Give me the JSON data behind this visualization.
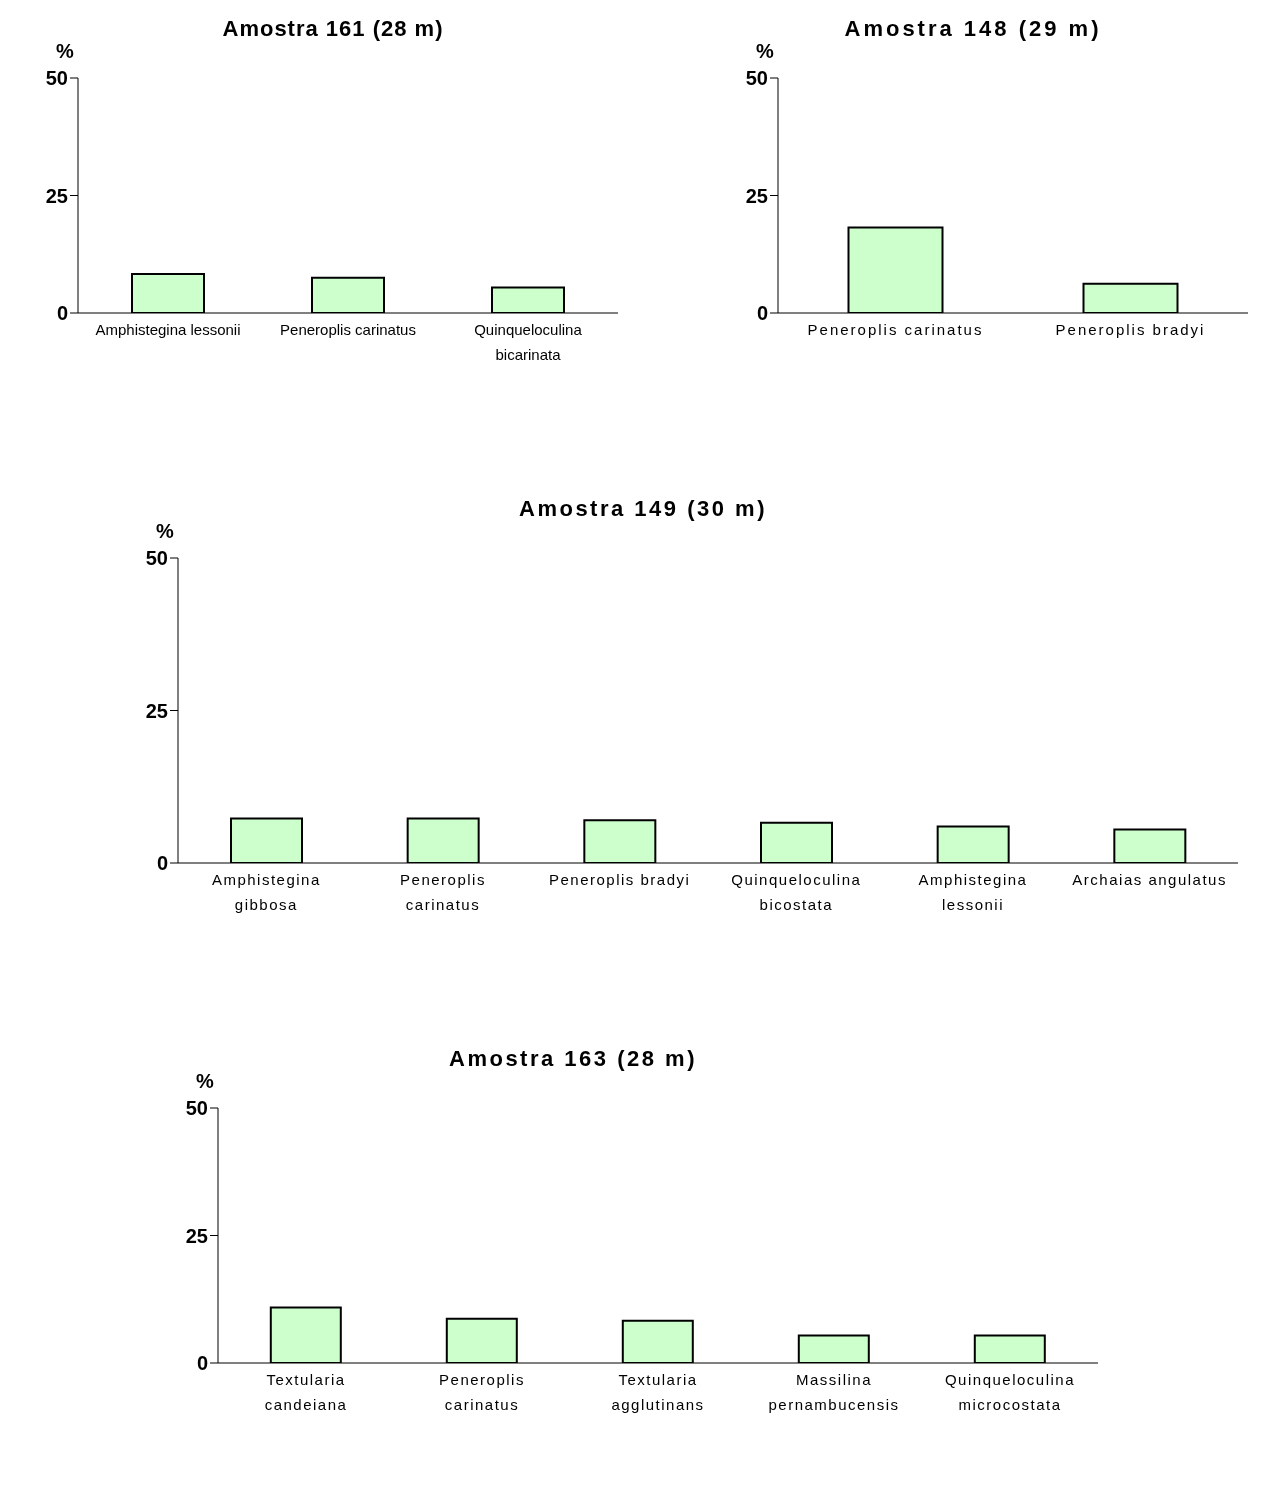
{
  "chart_data": [
    {
      "type": "bar",
      "title": "Amostra 161 (28 m)",
      "ylabel": "%",
      "categories": [
        "Amphistegina lessonii",
        "Peneroplis carinatus",
        "Quinqueloculina bicarinata"
      ],
      "values": [
        8.3,
        7.5,
        5.4
      ],
      "color": "#ccffcc",
      "ylim": [
        0,
        50
      ],
      "yticks": [
        0,
        25,
        50
      ]
    },
    {
      "type": "bar",
      "title": "Amostra 148 (29 m)",
      "ylabel": "%",
      "categories": [
        "Peneroplis carinatus",
        "Peneroplis bradyi"
      ],
      "values": [
        18.2,
        6.2
      ],
      "color": "#ccffcc",
      "ylim": [
        0,
        50
      ],
      "yticks": [
        0,
        25,
        50
      ]
    },
    {
      "type": "bar",
      "title": "Amostra 149 (30 m)",
      "ylabel": "%",
      "categories": [
        "Amphistegina gibbosa",
        "Peneroplis carinatus",
        "Peneroplis bradyi",
        "Quinqueloculina bicostata",
        "Amphistegina lessonii",
        "Archaias angulatus"
      ],
      "values": [
        7.3,
        7.3,
        7.0,
        6.6,
        6.0,
        5.5
      ],
      "color": "#ccffcc",
      "ylim": [
        0,
        50
      ],
      "yticks": [
        0,
        25,
        50
      ]
    },
    {
      "type": "bar",
      "title": "Amostra 163 (28 m)",
      "ylabel": "%",
      "categories": [
        "Textularia candeiana",
        "Peneroplis carinatus",
        "Textularia agglutinans",
        "Massilina pernambucensis",
        "Quinqueloculina microcostata"
      ],
      "values": [
        10.9,
        8.7,
        8.3,
        5.4,
        5.4
      ],
      "color": "#ccffcc",
      "ylim": [
        0,
        50
      ],
      "yticks": [
        0,
        25,
        50
      ]
    }
  ]
}
